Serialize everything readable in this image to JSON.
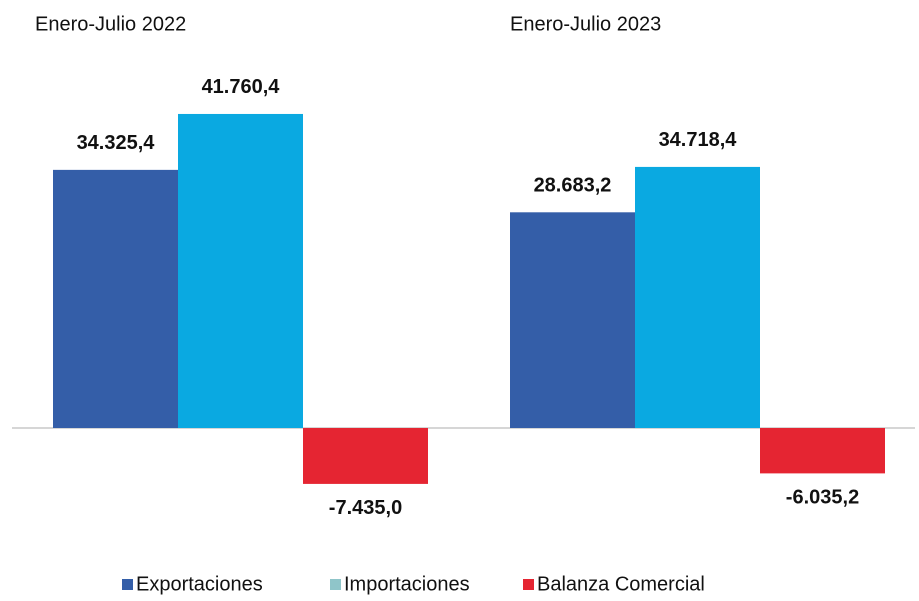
{
  "chart_data": {
    "type": "bar",
    "categories": [
      "Enero-Julio 2022",
      "Enero-Julio 2023"
    ],
    "series": [
      {
        "name": "Exportaciones",
        "color": "#345ea8",
        "legend_color": "#345ea8",
        "values": [
          34325.4,
          28683.2
        ],
        "value_labels": [
          "34.325,4",
          "28.683,2"
        ]
      },
      {
        "name": "Importaciones",
        "color": "#0aa9e1",
        "legend_color": "#8fc5c9",
        "values": [
          41760.4,
          34718.4
        ],
        "value_labels": [
          "41.760,4",
          "34.718,4"
        ]
      },
      {
        "name": "Balanza Comercial",
        "color": "#e52532",
        "legend_color": "#e52532",
        "values": [
          -7435.0,
          -6035.2
        ],
        "value_labels": [
          "-7.435,0",
          "-6.035,2"
        ]
      }
    ],
    "ylim": [
      -10000,
      45000
    ],
    "legend": "bottom"
  }
}
